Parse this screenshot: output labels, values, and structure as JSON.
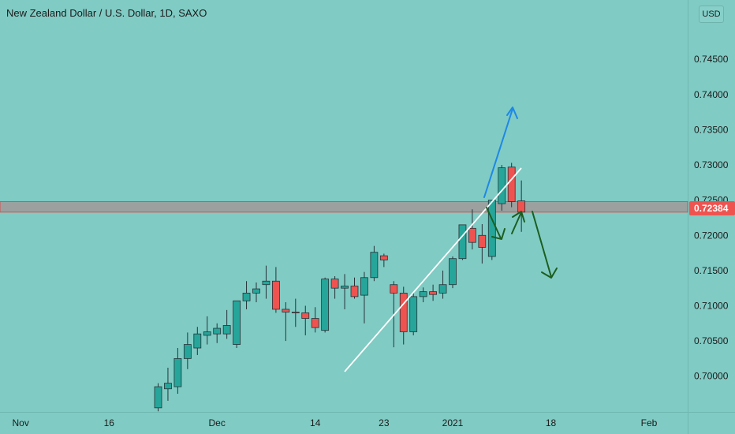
{
  "chart": {
    "title": "New Zealand Dollar / U.S. Dollar, 1D, SAXO",
    "currency": "USD",
    "colors": {
      "background": "#80cbc4",
      "up": "#26a69a",
      "down": "#ef5350",
      "wick": "#263238",
      "zone": "#9e9e9e",
      "price_tag": "#ef5350",
      "trendline": "#ffffff",
      "blue_arrow": "#1e88e5",
      "green_arrows": "#1b5e20"
    }
  },
  "chart_data": {
    "type": "candlestick",
    "title": "New Zealand Dollar / U.S. Dollar, 1D, SAXO",
    "y_axis": {
      "ticks": [
        "0.70000",
        "0.70500",
        "0.71000",
        "0.71500",
        "0.72000",
        "0.72500",
        "0.73000",
        "0.73500",
        "0.74000",
        "0.74500"
      ],
      "ylim": [
        0.6975,
        0.7485
      ]
    },
    "x_axis": {
      "ticks": [
        {
          "label": "Nov",
          "index": -14
        },
        {
          "label": "16",
          "index": -5
        },
        {
          "label": "Dec",
          "index": 6
        },
        {
          "label": "14",
          "index": 16
        },
        {
          "label": "23",
          "index": 23
        },
        {
          "label": "2021",
          "index": 30
        },
        {
          "label": "18",
          "index": 40
        },
        {
          "label": "Feb",
          "index": 50
        }
      ]
    },
    "last_price": "0.72384",
    "last_price_value": 0.72384,
    "resistance_zone": [
      0.7233,
      0.7248
    ],
    "candles": [
      {
        "o": 0.6955,
        "h": 0.699,
        "l": 0.695,
        "c": 0.6985
      },
      {
        "o": 0.6982,
        "h": 0.7012,
        "l": 0.6965,
        "c": 0.699
      },
      {
        "o": 0.6985,
        "h": 0.704,
        "l": 0.6975,
        "c": 0.7025
      },
      {
        "o": 0.7025,
        "h": 0.7062,
        "l": 0.701,
        "c": 0.7045
      },
      {
        "o": 0.704,
        "h": 0.707,
        "l": 0.703,
        "c": 0.706
      },
      {
        "o": 0.7058,
        "h": 0.7085,
        "l": 0.7045,
        "c": 0.7063
      },
      {
        "o": 0.706,
        "h": 0.7075,
        "l": 0.7047,
        "c": 0.7068
      },
      {
        "o": 0.706,
        "h": 0.7094,
        "l": 0.7053,
        "c": 0.7072
      },
      {
        "o": 0.7045,
        "h": 0.7107,
        "l": 0.704,
        "c": 0.7107
      },
      {
        "o": 0.7107,
        "h": 0.7135,
        "l": 0.7095,
        "c": 0.7118
      },
      {
        "o": 0.7118,
        "h": 0.7133,
        "l": 0.7105,
        "c": 0.7124
      },
      {
        "o": 0.713,
        "h": 0.7157,
        "l": 0.711,
        "c": 0.7135
      },
      {
        "o": 0.7135,
        "h": 0.7155,
        "l": 0.709,
        "c": 0.7095
      },
      {
        "o": 0.7095,
        "h": 0.7105,
        "l": 0.705,
        "c": 0.7091
      },
      {
        "o": 0.7091,
        "h": 0.711,
        "l": 0.707,
        "c": 0.709
      },
      {
        "o": 0.709,
        "h": 0.71,
        "l": 0.7058,
        "c": 0.7082
      },
      {
        "o": 0.7082,
        "h": 0.7098,
        "l": 0.7062,
        "c": 0.7069
      },
      {
        "o": 0.7065,
        "h": 0.714,
        "l": 0.7062,
        "c": 0.7138
      },
      {
        "o": 0.7138,
        "h": 0.7142,
        "l": 0.711,
        "c": 0.7125
      },
      {
        "o": 0.7125,
        "h": 0.7145,
        "l": 0.7095,
        "c": 0.7128
      },
      {
        "o": 0.7128,
        "h": 0.714,
        "l": 0.711,
        "c": 0.7113
      },
      {
        "o": 0.7115,
        "h": 0.7148,
        "l": 0.7075,
        "c": 0.714
      },
      {
        "o": 0.714,
        "h": 0.7185,
        "l": 0.7135,
        "c": 0.7176
      },
      {
        "o": 0.7171,
        "h": 0.7174,
        "l": 0.7155,
        "c": 0.7165
      },
      {
        "o": 0.713,
        "h": 0.7135,
        "l": 0.7041,
        "c": 0.7118
      },
      {
        "o": 0.7118,
        "h": 0.7127,
        "l": 0.7045,
        "c": 0.7063
      },
      {
        "o": 0.7063,
        "h": 0.7118,
        "l": 0.7058,
        "c": 0.7113
      },
      {
        "o": 0.7113,
        "h": 0.7126,
        "l": 0.7105,
        "c": 0.712
      },
      {
        "o": 0.712,
        "h": 0.713,
        "l": 0.7107,
        "c": 0.7116
      },
      {
        "o": 0.7118,
        "h": 0.715,
        "l": 0.711,
        "c": 0.713
      },
      {
        "o": 0.713,
        "h": 0.717,
        "l": 0.7125,
        "c": 0.7167
      },
      {
        "o": 0.7167,
        "h": 0.7215,
        "l": 0.7165,
        "c": 0.7215
      },
      {
        "o": 0.721,
        "h": 0.7237,
        "l": 0.718,
        "c": 0.719
      },
      {
        "o": 0.72,
        "h": 0.7216,
        "l": 0.716,
        "c": 0.7183
      },
      {
        "o": 0.717,
        "h": 0.725,
        "l": 0.7165,
        "c": 0.725
      },
      {
        "o": 0.7245,
        "h": 0.73,
        "l": 0.7235,
        "c": 0.7296
      },
      {
        "o": 0.7297,
        "h": 0.7303,
        "l": 0.724,
        "c": 0.7248
      },
      {
        "o": 0.7249,
        "h": 0.7278,
        "l": 0.7205,
        "c": 0.7233
      }
    ]
  }
}
